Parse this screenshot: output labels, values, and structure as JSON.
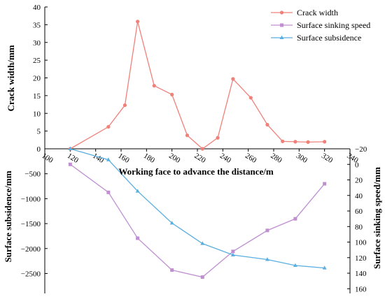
{
  "chart_data": {
    "type": "line",
    "xlabel": "Working face to advance the distance/m",
    "x_ticks": [
      100,
      120,
      140,
      160,
      180,
      200,
      220,
      240,
      260,
      280,
      300,
      320,
      340
    ],
    "xlim": [
      100,
      340
    ],
    "y_top": {
      "label": "Crack width/mm",
      "ticks": [
        0,
        5,
        10,
        15,
        20,
        25,
        30,
        35,
        40
      ],
      "range": [
        0,
        40
      ]
    },
    "y_left_bottom": {
      "label": "Surface subsidence/mm",
      "ticks": [
        -2500,
        -2000,
        -1500,
        -1000,
        -500
      ],
      "tick_labels": [
        "−2500",
        "−2000",
        "−1500",
        "−1000",
        "−500"
      ],
      "range": [
        -2900,
        0
      ]
    },
    "y_right_bottom": {
      "label": "Surface sinking speed/mm",
      "ticks": [
        -20,
        0,
        20,
        40,
        60,
        80,
        100,
        120,
        140,
        160
      ],
      "tick_labels": [
        "−20",
        "0",
        "20",
        "40",
        "60",
        "80",
        "100",
        "120",
        "140",
        "160"
      ],
      "range": [
        -20,
        166
      ],
      "inverted": true
    },
    "legend_position": "top-right",
    "series": [
      {
        "name": "Crack width",
        "axis": "y_top",
        "color": "#f0817a",
        "marker": "circle",
        "x": [
          120,
          150,
          163,
          173,
          186,
          200,
          212,
          224,
          236,
          248,
          262,
          275,
          287,
          297,
          307,
          320
        ],
        "y": [
          0,
          6.2,
          12.3,
          35.9,
          17.8,
          15.3,
          3.8,
          0,
          3.1,
          19.7,
          14.4,
          6.8,
          2.1,
          2.0,
          1.9,
          2.0
        ]
      },
      {
        "name": "Surface sinking speed",
        "axis": "y_right_bottom",
        "color": "#bf8fd0",
        "marker": "square",
        "x": [
          120,
          150,
          173,
          200,
          224,
          248,
          275,
          297,
          320
        ],
        "y": [
          0,
          36,
          95,
          136,
          145,
          112,
          85,
          70,
          25
        ]
      },
      {
        "name": "Surface subsidence",
        "axis": "y_left_bottom",
        "color": "#5aaee0",
        "marker": "triangle",
        "x": [
          120,
          150,
          173,
          200,
          224,
          248,
          275,
          297,
          320
        ],
        "y": [
          0,
          -220,
          -850,
          -1490,
          -1900,
          -2130,
          -2220,
          -2340,
          -2390
        ]
      }
    ]
  }
}
